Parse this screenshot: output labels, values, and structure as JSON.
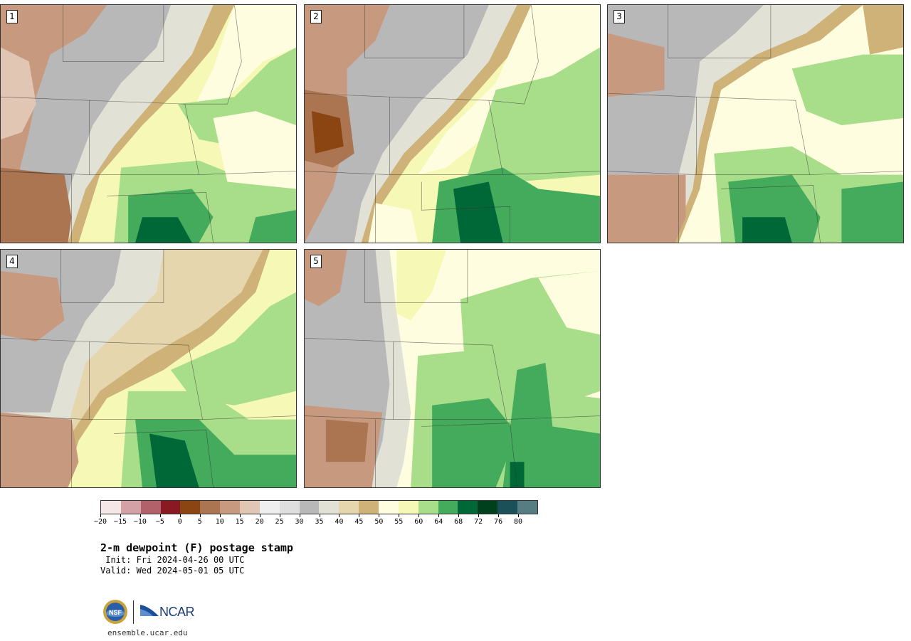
{
  "panels": [
    {
      "label": "1"
    },
    {
      "label": "2"
    },
    {
      "label": "3"
    },
    {
      "label": "4"
    },
    {
      "label": "5"
    }
  ],
  "colorbar": {
    "colors": [
      "#f5e6e8",
      "#d4a2a6",
      "#b2606a",
      "#8a1a22",
      "#8a4512",
      "#aa7550",
      "#c79a80",
      "#e2c6b4",
      "#efefef",
      "#dedede",
      "#b8b8b8",
      "#e2e1d6",
      "#e5d6ae",
      "#cfb277",
      "#fffde0",
      "#f6f9b6",
      "#a8dd8a",
      "#44aa5c",
      "#006837",
      "#00401c",
      "#1c5058",
      "#557d82"
    ],
    "tick_labels": [
      "−20",
      "−15",
      "−10",
      "−5",
      "0",
      "5",
      "10",
      "15",
      "20",
      "25",
      "30",
      "35",
      "40",
      "45",
      "50",
      "55",
      "60",
      "64",
      "68",
      "72",
      "76",
      "80"
    ]
  },
  "title": "2-m dewpoint (F) postage stamp",
  "init_line": " Init: Fri 2024-04-26 00 UTC",
  "valid_line": "Valid: Wed 2024-05-01 05 UTC",
  "logo": {
    "nsf_text": "NSF",
    "ncar_text": "NCAR",
    "site": "ensemble.ucar.edu"
  }
}
